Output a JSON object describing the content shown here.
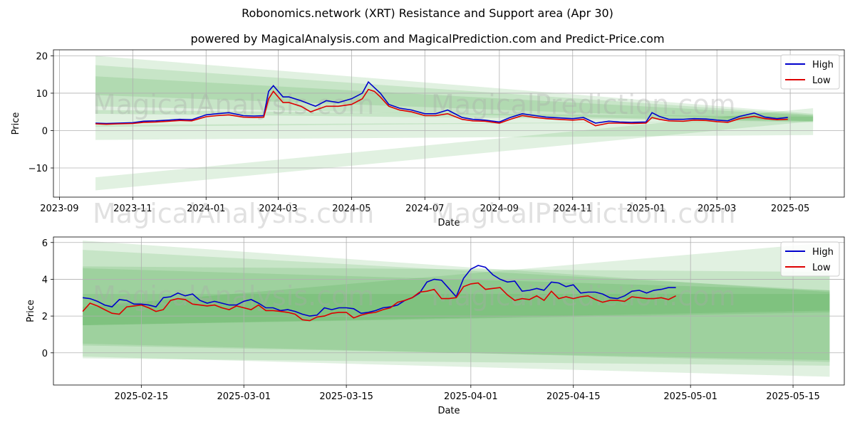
{
  "title": "Robonomics.network (XRT) Resistance and Support area (Apr 30)",
  "subtitle": "powered by MagicalAnalysis.com and MagicalPrediction.com and Predict-Price.com",
  "watermark_left": "MagicalAnalysis.com",
  "watermark_right": "MagicalPrediction.com",
  "colors": {
    "high": "#0000cc",
    "low": "#dd0000",
    "band": "#2e9b2e",
    "grid": "#b0b0b0"
  },
  "chart_data": [
    {
      "type": "line",
      "xlabel": "Date",
      "ylabel": "Price",
      "ylim": [
        -17.8,
        21.6
      ],
      "xlim": [
        "2023-08-27",
        "2025-06-15"
      ],
      "grid": true,
      "legend": "top-right",
      "xticks": [
        "2023-09",
        "2023-11",
        "2024-01",
        "2024-03",
        "2024-05",
        "2024-07",
        "2024-09",
        "2024-11",
        "2025-01",
        "2025-03",
        "2025-05"
      ],
      "xtick_dates": [
        "2023-09-01",
        "2023-11-01",
        "2024-01-01",
        "2024-03-01",
        "2024-05-01",
        "2024-07-01",
        "2024-09-01",
        "2024-11-01",
        "2025-01-01",
        "2025-03-01",
        "2025-05-01"
      ],
      "yticks": [
        -10,
        0,
        10,
        20
      ],
      "ytick_labels": [
        "−10",
        "0",
        "10",
        "20"
      ],
      "bands": [
        {
          "start": [
            "2023-10-01",
            9.5,
            20
          ],
          "end": [
            "2025-05-20",
            2.5,
            4.5
          ]
        },
        {
          "start": [
            "2023-10-01",
            6.5,
            17.5
          ],
          "end": [
            "2025-05-20",
            2.2,
            4.2
          ]
        },
        {
          "start": [
            "2023-10-01",
            4.5,
            14.5
          ],
          "end": [
            "2025-05-20",
            2.5,
            4
          ]
        },
        {
          "start": [
            "2023-10-01",
            1,
            5.5
          ],
          "end": [
            "2025-05-20",
            2.5,
            3.7
          ]
        },
        {
          "start": [
            "2023-10-01",
            -2.5,
            1.5
          ],
          "end": [
            "2025-05-20",
            -1.2,
            2.5
          ]
        },
        {
          "start": [
            "2023-10-01",
            -16,
            -12.5
          ],
          "end": [
            "2025-05-20",
            2.5,
            6
          ]
        }
      ],
      "series": [
        {
          "name": "High",
          "x": [
            "2023-10-01",
            "2023-10-10",
            "2023-10-20",
            "2023-11-01",
            "2023-11-10",
            "2023-11-20",
            "2023-12-01",
            "2023-12-10",
            "2023-12-20",
            "2024-01-01",
            "2024-01-10",
            "2024-01-20",
            "2024-02-01",
            "2024-02-10",
            "2024-02-18",
            "2024-02-22",
            "2024-02-26",
            "2024-03-05",
            "2024-03-10",
            "2024-03-20",
            "2024-03-28",
            "2024-04-01",
            "2024-04-10",
            "2024-04-20",
            "2024-05-01",
            "2024-05-10",
            "2024-05-15",
            "2024-05-20",
            "2024-05-25",
            "2024-06-01",
            "2024-06-10",
            "2024-06-20",
            "2024-07-01",
            "2024-07-10",
            "2024-07-20",
            "2024-08-01",
            "2024-08-10",
            "2024-08-20",
            "2024-09-01",
            "2024-09-10",
            "2024-09-20",
            "2024-10-01",
            "2024-10-10",
            "2024-10-20",
            "2024-11-01",
            "2024-11-10",
            "2024-11-20",
            "2024-12-01",
            "2024-12-10",
            "2024-12-20",
            "2025-01-01",
            "2025-01-06",
            "2025-01-12",
            "2025-01-20",
            "2025-02-01",
            "2025-02-10",
            "2025-02-20",
            "2025-03-01",
            "2025-03-10",
            "2025-03-20",
            "2025-04-01",
            "2025-04-10",
            "2025-04-20",
            "2025-04-29"
          ],
          "values": [
            2,
            1.9,
            2,
            2.1,
            2.5,
            2.6,
            2.8,
            3,
            2.9,
            4.2,
            4.5,
            4.8,
            4,
            3.9,
            4,
            10.5,
            12,
            9,
            9,
            8,
            7,
            6.5,
            8,
            7.5,
            8.5,
            10,
            13,
            11.5,
            10,
            7,
            6,
            5.5,
            4.5,
            4.5,
            5.5,
            3.5,
            3,
            2.8,
            2.3,
            3.5,
            4.5,
            4,
            3.6,
            3.4,
            3.2,
            3.5,
            2,
            2.5,
            2.3,
            2.2,
            2.3,
            4.8,
            3.8,
            3,
            3,
            3.2,
            3.1,
            2.8,
            2.6,
            3.8,
            4.7,
            3.6,
            3.2,
            3.5
          ]
        },
        {
          "name": "Low",
          "x": [
            "2023-10-01",
            "2023-10-10",
            "2023-10-20",
            "2023-11-01",
            "2023-11-10",
            "2023-11-20",
            "2023-12-01",
            "2023-12-10",
            "2023-12-20",
            "2024-01-01",
            "2024-01-10",
            "2024-01-20",
            "2024-02-01",
            "2024-02-10",
            "2024-02-18",
            "2024-02-22",
            "2024-02-26",
            "2024-03-05",
            "2024-03-10",
            "2024-03-20",
            "2024-03-28",
            "2024-04-01",
            "2024-04-10",
            "2024-04-20",
            "2024-05-01",
            "2024-05-10",
            "2024-05-15",
            "2024-05-20",
            "2024-05-25",
            "2024-06-01",
            "2024-06-10",
            "2024-06-20",
            "2024-07-01",
            "2024-07-10",
            "2024-07-20",
            "2024-08-01",
            "2024-08-10",
            "2024-08-20",
            "2024-09-01",
            "2024-09-10",
            "2024-09-20",
            "2024-10-01",
            "2024-10-10",
            "2024-10-20",
            "2024-11-01",
            "2024-11-10",
            "2024-11-20",
            "2024-12-01",
            "2024-12-10",
            "2024-12-20",
            "2025-01-01",
            "2025-01-06",
            "2025-01-12",
            "2025-01-20",
            "2025-02-01",
            "2025-02-10",
            "2025-02-20",
            "2025-03-01",
            "2025-03-10",
            "2025-03-20",
            "2025-04-01",
            "2025-04-10",
            "2025-04-20",
            "2025-04-29"
          ],
          "values": [
            1.8,
            1.7,
            1.8,
            1.9,
            2.2,
            2.3,
            2.5,
            2.7,
            2.6,
            3.7,
            4,
            4.2,
            3.6,
            3.5,
            3.6,
            8.5,
            10.5,
            7.5,
            7.5,
            6.5,
            5,
            5.5,
            6.5,
            6.5,
            7,
            8.5,
            11,
            10.5,
            9,
            6.5,
            5.5,
            5,
            4,
            4,
            4.5,
            3,
            2.6,
            2.5,
            2,
            3,
            4,
            3.5,
            3.2,
            3,
            2.8,
            3,
            1.3,
            2,
            2,
            1.9,
            2,
            3.5,
            3,
            2.6,
            2.5,
            2.8,
            2.7,
            2.4,
            2.2,
            3.2,
            3.8,
            3.2,
            2.9,
            3
          ]
        }
      ]
    },
    {
      "type": "line",
      "xlabel": "Date",
      "ylabel": "Price",
      "ylim": [
        -1.75,
        6.3
      ],
      "xlim": [
        "2025-02-03",
        "2025-05-22"
      ],
      "grid": true,
      "legend": "top-right",
      "xticks": [
        "2025-02-15",
        "2025-03-01",
        "2025-03-15",
        "2025-04-01",
        "2025-04-15",
        "2025-05-01",
        "2025-05-15"
      ],
      "xtick_dates": [
        "2025-02-15",
        "2025-03-01",
        "2025-03-15",
        "2025-04-01",
        "2025-04-15",
        "2025-05-01",
        "2025-05-15"
      ],
      "yticks": [
        0,
        2,
        4,
        6
      ],
      "ytick_labels": [
        "0",
        "2",
        "4",
        "6"
      ],
      "bands": [
        {
          "start": [
            "2025-02-07",
            0.5,
            6.1
          ],
          "end": [
            "2025-05-20",
            -0.5,
            3.3
          ]
        },
        {
          "start": [
            "2025-02-07",
            0.4,
            5.6
          ],
          "end": [
            "2025-05-20",
            -0.4,
            3.4
          ]
        },
        {
          "start": [
            "2025-02-07",
            -0.3,
            4.7
          ],
          "end": [
            "2025-05-20",
            -0.7,
            4.4
          ]
        },
        {
          "start": [
            "2025-02-07",
            1.5,
            4.6
          ],
          "end": [
            "2025-05-20",
            2.3,
            3.4
          ]
        },
        {
          "start": [
            "2025-02-07",
            1.5,
            3.2
          ],
          "end": [
            "2025-05-20",
            2.2,
            3.2
          ]
        },
        {
          "start": [
            "2025-02-07",
            -0.2,
            2.5
          ],
          "end": [
            "2025-05-20",
            -1.3,
            6
          ]
        }
      ],
      "series": [
        {
          "name": "High",
          "x": [
            "2025-02-07",
            "2025-02-08",
            "2025-02-09",
            "2025-02-10",
            "2025-02-11",
            "2025-02-12",
            "2025-02-13",
            "2025-02-14",
            "2025-02-15",
            "2025-02-16",
            "2025-02-17",
            "2025-02-18",
            "2025-02-19",
            "2025-02-20",
            "2025-02-21",
            "2025-02-22",
            "2025-02-23",
            "2025-02-24",
            "2025-02-25",
            "2025-02-26",
            "2025-02-27",
            "2025-02-28",
            "2025-03-01",
            "2025-03-02",
            "2025-03-03",
            "2025-03-04",
            "2025-03-05",
            "2025-03-06",
            "2025-03-07",
            "2025-03-08",
            "2025-03-09",
            "2025-03-10",
            "2025-03-11",
            "2025-03-12",
            "2025-03-13",
            "2025-03-14",
            "2025-03-15",
            "2025-03-16",
            "2025-03-17",
            "2025-03-18",
            "2025-03-19",
            "2025-03-20",
            "2025-03-21",
            "2025-03-22",
            "2025-03-23",
            "2025-03-24",
            "2025-03-25",
            "2025-03-26",
            "2025-03-27",
            "2025-03-28",
            "2025-03-29",
            "2025-03-30",
            "2025-03-31",
            "2025-04-01",
            "2025-04-02",
            "2025-04-03",
            "2025-04-04",
            "2025-04-05",
            "2025-04-06",
            "2025-04-07",
            "2025-04-08",
            "2025-04-09",
            "2025-04-10",
            "2025-04-11",
            "2025-04-12",
            "2025-04-13",
            "2025-04-14",
            "2025-04-15",
            "2025-04-16",
            "2025-04-17",
            "2025-04-18",
            "2025-04-19",
            "2025-04-20",
            "2025-04-21",
            "2025-04-22",
            "2025-04-23",
            "2025-04-24",
            "2025-04-25",
            "2025-04-26",
            "2025-04-27",
            "2025-04-28",
            "2025-04-29"
          ],
          "values": [
            3,
            2.95,
            2.8,
            2.6,
            2.5,
            2.9,
            2.85,
            2.65,
            2.65,
            2.6,
            2.5,
            3,
            3.05,
            3.25,
            3.1,
            3.2,
            2.85,
            2.7,
            2.8,
            2.7,
            2.6,
            2.6,
            2.8,
            2.9,
            2.7,
            2.45,
            2.45,
            2.3,
            2.35,
            2.25,
            2.1,
            2.0,
            2.05,
            2.45,
            2.35,
            2.45,
            2.45,
            2.4,
            2.15,
            2.2,
            2.3,
            2.45,
            2.5,
            2.6,
            2.85,
            3.0,
            3.25,
            3.85,
            4.0,
            3.95,
            3.5,
            3.05,
            4.05,
            4.55,
            4.75,
            4.65,
            4.25,
            4.0,
            3.85,
            3.9,
            3.35,
            3.4,
            3.5,
            3.4,
            3.85,
            3.8,
            3.6,
            3.7,
            3.25,
            3.3,
            3.3,
            3.2,
            3,
            2.95,
            3.1,
            3.35,
            3.4,
            3.25,
            3.4,
            3.45,
            3.55,
            3.55
          ]
        },
        {
          "name": "Low",
          "x": [
            "2025-02-07",
            "2025-02-08",
            "2025-02-09",
            "2025-02-10",
            "2025-02-11",
            "2025-02-12",
            "2025-02-13",
            "2025-02-14",
            "2025-02-15",
            "2025-02-16",
            "2025-02-17",
            "2025-02-18",
            "2025-02-19",
            "2025-02-20",
            "2025-02-21",
            "2025-02-22",
            "2025-02-23",
            "2025-02-24",
            "2025-02-25",
            "2025-02-26",
            "2025-02-27",
            "2025-02-28",
            "2025-03-01",
            "2025-03-02",
            "2025-03-03",
            "2025-03-04",
            "2025-03-05",
            "2025-03-06",
            "2025-03-07",
            "2025-03-08",
            "2025-03-09",
            "2025-03-10",
            "2025-03-11",
            "2025-03-12",
            "2025-03-13",
            "2025-03-14",
            "2025-03-15",
            "2025-03-16",
            "2025-03-17",
            "2025-03-18",
            "2025-03-19",
            "2025-03-20",
            "2025-03-21",
            "2025-03-22",
            "2025-03-23",
            "2025-03-24",
            "2025-03-25",
            "2025-03-26",
            "2025-03-27",
            "2025-03-28",
            "2025-03-29",
            "2025-03-30",
            "2025-03-31",
            "2025-04-01",
            "2025-04-02",
            "2025-04-03",
            "2025-04-04",
            "2025-04-05",
            "2025-04-06",
            "2025-04-07",
            "2025-04-08",
            "2025-04-09",
            "2025-04-10",
            "2025-04-11",
            "2025-04-12",
            "2025-04-13",
            "2025-04-14",
            "2025-04-15",
            "2025-04-16",
            "2025-04-17",
            "2025-04-18",
            "2025-04-19",
            "2025-04-20",
            "2025-04-21",
            "2025-04-22",
            "2025-04-23",
            "2025-04-24",
            "2025-04-25",
            "2025-04-26",
            "2025-04-27",
            "2025-04-28",
            "2025-04-29"
          ],
          "values": [
            2.25,
            2.7,
            2.55,
            2.35,
            2.15,
            2.1,
            2.5,
            2.55,
            2.6,
            2.45,
            2.25,
            2.35,
            2.85,
            2.95,
            2.9,
            2.65,
            2.6,
            2.55,
            2.6,
            2.45,
            2.35,
            2.55,
            2.45,
            2.35,
            2.6,
            2.3,
            2.3,
            2.25,
            2.2,
            2.1,
            1.8,
            1.75,
            1.95,
            2.0,
            2.15,
            2.2,
            2.2,
            1.9,
            2.05,
            2.15,
            2.2,
            2.35,
            2.45,
            2.75,
            2.85,
            3.0,
            3.3,
            3.35,
            3.45,
            2.95,
            2.95,
            3.0,
            3.6,
            3.75,
            3.8,
            3.45,
            3.5,
            3.55,
            3.15,
            2.85,
            2.95,
            2.9,
            3.1,
            2.85,
            3.35,
            2.95,
            3.05,
            2.95,
            3.05,
            3.1,
            2.9,
            2.75,
            2.85,
            2.85,
            2.8,
            3.05,
            3.0,
            2.95,
            2.95,
            3.0,
            2.9,
            3.1
          ]
        }
      ]
    }
  ]
}
